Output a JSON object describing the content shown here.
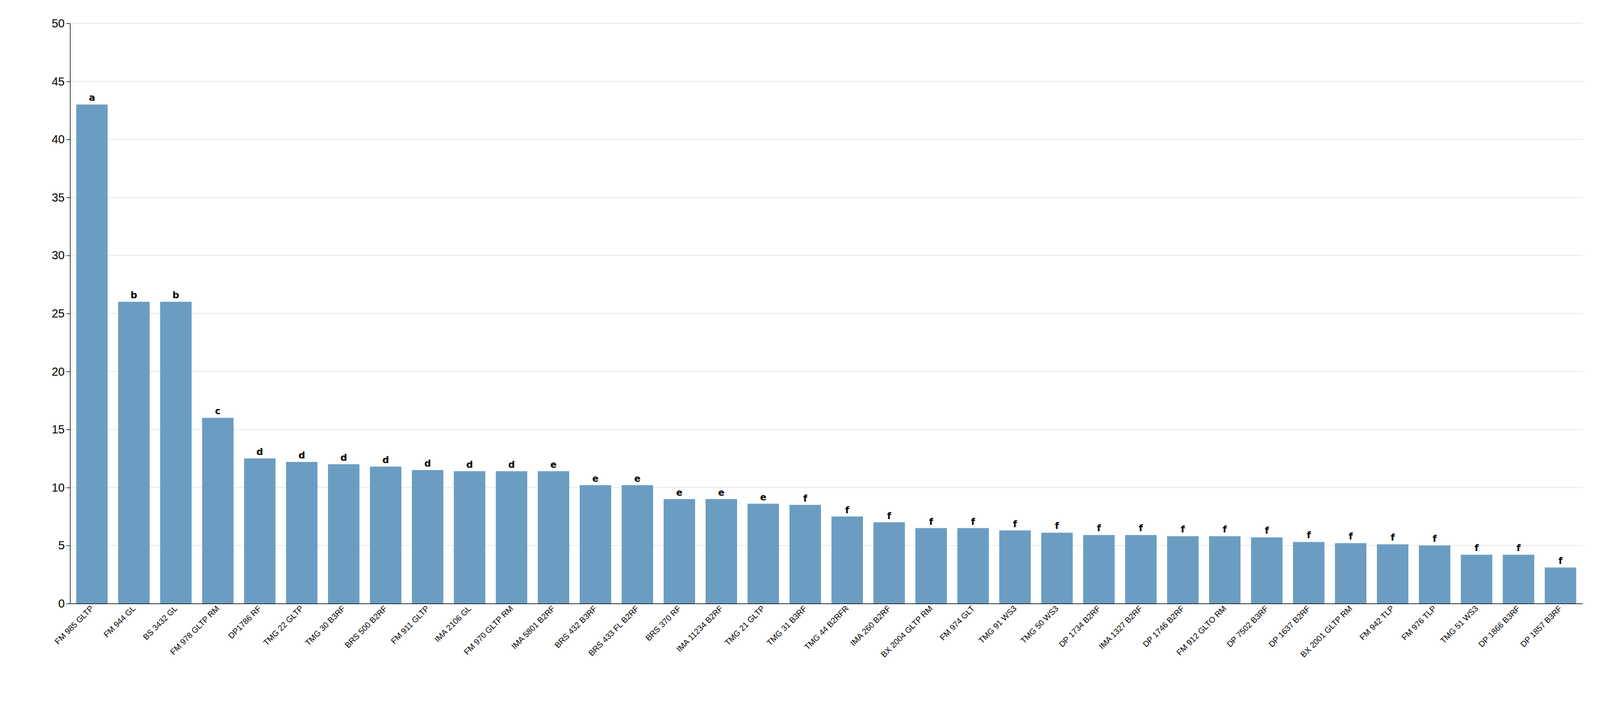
{
  "chart_data": {
    "type": "bar",
    "categories": [
      "FM 985 GLTP",
      "FM 944 GL",
      "BS 3432 GL",
      "FM 978 GLTP RM",
      "DP1786 RF",
      "TMG 22 GLTP",
      "TMG 30 B3RF",
      "BRS 500 B2RF",
      "FM 911 GLTP",
      "IMA 2106 GL",
      "FM 970 GLTP RM",
      "IMA 5801 B2RF",
      "BRS 432 B3RF",
      "BRS 433 FL B2RF",
      "BRS 370 RF",
      "IMA 11234 B2RF",
      "TMG 21 GLTP",
      "TMG 31 B3RF",
      "TMG 44 B2RFR",
      "IMA 260 B2RF",
      "BX 2004 GLTP RM",
      "FM 974 GLT",
      "TMG 91 WS3",
      "TMG 50 WS3",
      "DP 1734 B2RF",
      "IMA 1327 B2RF",
      "DP 1746 B2RF",
      "FM 912 GLTO RM",
      "DP 7502 B3RF",
      "DP 1637 B2RF",
      "BX 2001 GLTP RM",
      "FM 942 TLP",
      "FM 976 TLP",
      "TMG 51 WS3",
      "DP 1866 B3RF",
      "DP 1857 B3RF"
    ],
    "values": [
      43.0,
      26.0,
      26.0,
      16.0,
      12.5,
      12.2,
      12.0,
      11.8,
      11.5,
      11.4,
      11.4,
      11.4,
      10.2,
      10.2,
      9.0,
      9.0,
      8.6,
      8.5,
      7.5,
      7.0,
      6.5,
      6.5,
      6.3,
      6.1,
      5.9,
      5.9,
      5.8,
      5.8,
      5.7,
      5.3,
      5.2,
      5.1,
      5.0,
      4.2,
      4.2,
      3.1
    ],
    "annotations": [
      "a",
      "b",
      "b",
      "c",
      "d",
      "d",
      "d",
      "d",
      "d",
      "d",
      "d",
      "e",
      "e",
      "e",
      "e",
      "e",
      "e",
      "f",
      "f",
      "f",
      "f",
      "f",
      "f",
      "f",
      "f",
      "f",
      "f",
      "f",
      "f",
      "f",
      "f",
      "f",
      "f",
      "f",
      "f",
      "f"
    ],
    "color": "#6B9DC2",
    "ylim": [
      0,
      50
    ],
    "yticks": [
      0,
      5,
      10,
      15,
      20,
      25,
      30,
      35,
      40,
      45,
      50
    ],
    "grid": true
  }
}
